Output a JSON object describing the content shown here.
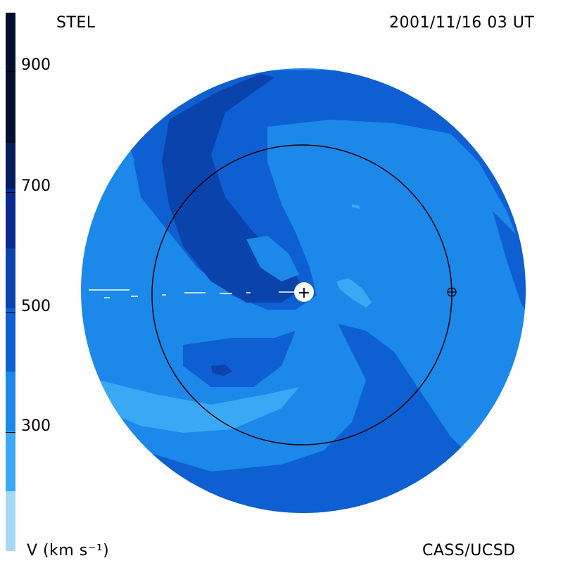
{
  "header": {
    "source": "STEL",
    "timestamp": "2001/11/16 03 UT"
  },
  "footer": {
    "credit": "CASS/UCSD"
  },
  "colorbar": {
    "unit_label": "V (km s⁻¹)",
    "ticks": [
      "900",
      "700",
      "500",
      "300"
    ],
    "colors": [
      "#a6d8f7",
      "#3aa9f5",
      "#1b88ea",
      "#0e5fd2",
      "#0b43ad",
      "#062a8e",
      "#041d5e",
      "#02102e"
    ]
  },
  "map": {
    "sun_symbol": "+",
    "earth_symbol": "earth-symbol"
  }
}
